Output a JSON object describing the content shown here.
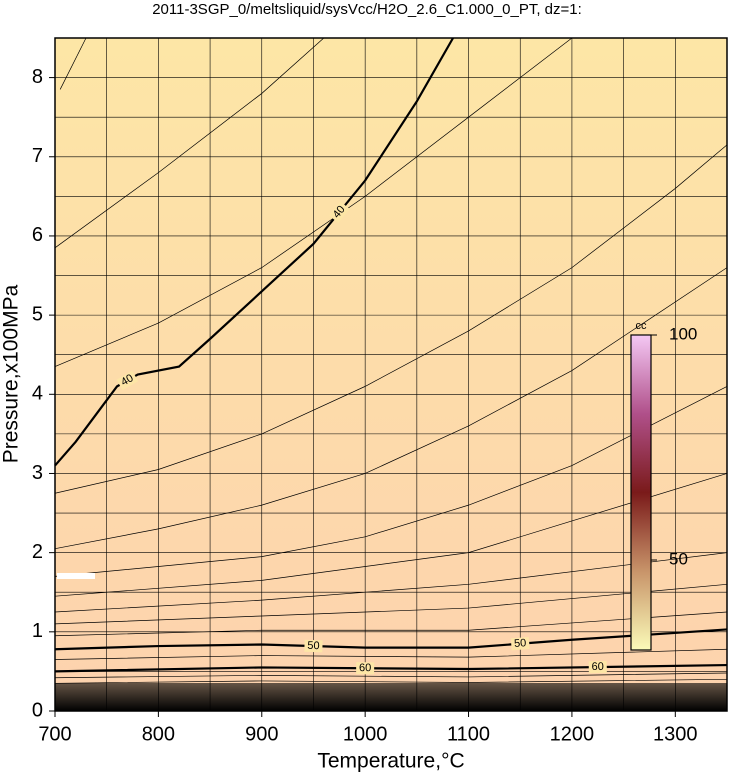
{
  "chart_data": {
    "type": "contour",
    "title": "2011-3SGP_0/meltsliquid/sysVcc/H2O_2.6_C1.000_0_PT, dz=1:",
    "x_label": "Temperature,°C",
    "y_label": "Pressure,x100MPa",
    "xlim": [
      700,
      1350
    ],
    "ylim": [
      0,
      8.5
    ],
    "xticks": [
      700,
      800,
      900,
      1000,
      1100,
      1200,
      1300
    ],
    "yticks": [
      0,
      1,
      2,
      3,
      4,
      5,
      6,
      7,
      8
    ],
    "xgrid": [
      750,
      800,
      850,
      900,
      950,
      1000,
      1050,
      1100,
      1150,
      1200,
      1250,
      1300
    ],
    "ygrid": [
      0.5,
      1,
      1.5,
      2,
      2.5,
      3,
      3.5,
      4,
      4.5,
      5,
      5.5,
      6,
      6.5,
      7,
      7.5,
      8
    ],
    "background_colors": [
      "#fde6a6",
      "#fdd2ae"
    ],
    "contours": [
      {
        "level": 40,
        "x": [
          700,
          720,
          740,
          760,
          780,
          820,
          850,
          900,
          950,
          1000,
          1050,
          1085
        ],
        "y": [
          3.1,
          3.4,
          3.75,
          4.1,
          4.25,
          4.35,
          4.7,
          5.3,
          5.9,
          6.7,
          7.7,
          8.5
        ]
      },
      {
        "level": 50,
        "x": [
          700,
          800,
          900,
          1000,
          1100,
          1200,
          1350
        ],
        "y": [
          0.78,
          0.82,
          0.84,
          0.8,
          0.8,
          0.9,
          1.03
        ]
      },
      {
        "level": 60,
        "x": [
          700,
          900,
          1100,
          1350
        ],
        "y": [
          0.5,
          0.55,
          0.53,
          0.58
        ]
      }
    ],
    "thin_contours": [
      {
        "x": [
          705,
          730
        ],
        "y": [
          7.85,
          8.5
        ]
      },
      {
        "x": [
          700,
          800,
          900,
          960
        ],
        "y": [
          5.85,
          6.8,
          7.8,
          8.5
        ]
      },
      {
        "x": [
          700,
          800,
          900,
          1000,
          1100,
          1200
        ],
        "y": [
          4.35,
          4.9,
          5.6,
          6.5,
          7.5,
          8.5
        ]
      },
      {
        "x": [
          700,
          800,
          900,
          1000,
          1100,
          1200,
          1300,
          1350
        ],
        "y": [
          2.75,
          3.05,
          3.5,
          4.1,
          4.8,
          5.6,
          6.6,
          7.15
        ]
      },
      {
        "x": [
          700,
          800,
          900,
          1000,
          1100,
          1200,
          1350
        ],
        "y": [
          2.05,
          2.3,
          2.6,
          3.0,
          3.6,
          4.3,
          5.6
        ]
      },
      {
        "x": [
          700,
          900,
          1000,
          1100,
          1200,
          1350
        ],
        "y": [
          1.7,
          1.95,
          2.2,
          2.6,
          3.1,
          4.1
        ]
      },
      {
        "x": [
          700,
          900,
          1100,
          1200,
          1350
        ],
        "y": [
          1.45,
          1.65,
          2.0,
          2.4,
          3.0
        ]
      },
      {
        "x": [
          700,
          900,
          1100,
          1350
        ],
        "y": [
          1.25,
          1.4,
          1.6,
          2.0
        ]
      },
      {
        "x": [
          700,
          900,
          1100,
          1350
        ],
        "y": [
          1.1,
          1.2,
          1.3,
          1.6
        ]
      },
      {
        "x": [
          700,
          900,
          1100,
          1350
        ],
        "y": [
          0.95,
          1.02,
          1.02,
          1.25
        ]
      },
      {
        "x": [
          700,
          900,
          1100,
          1350
        ],
        "y": [
          0.65,
          0.7,
          0.68,
          0.78
        ]
      },
      {
        "x": [
          700,
          900,
          1100,
          1350
        ],
        "y": [
          0.42,
          0.45,
          0.43,
          0.48
        ]
      },
      {
        "x": [
          700,
          900,
          1100,
          1350
        ],
        "y": [
          0.35,
          0.38,
          0.36,
          0.4
        ]
      }
    ],
    "colorbar": {
      "label": "cc",
      "lim": [
        30,
        100
      ],
      "ticks": [
        50,
        100
      ],
      "colors": [
        "#fbfbb8",
        "#c8946a",
        "#7a1a1a",
        "#b0508a",
        "#f4c8f4"
      ]
    }
  }
}
